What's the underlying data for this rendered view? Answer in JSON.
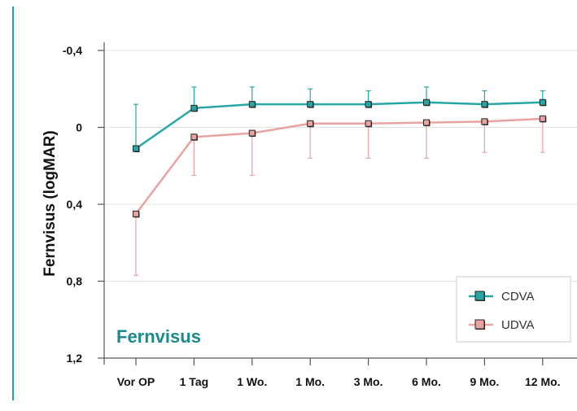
{
  "colors": {
    "cdva": "#27a6a6",
    "udva": "#e9a4a2",
    "title": "#1a8a8c",
    "frame_line": "#25a2a2",
    "axis": "#555555",
    "grid": "#e3e3e3"
  },
  "chart_data": {
    "type": "line",
    "title": "Fernvisus",
    "ylabel": "Fernvisus (logMAR)",
    "xlabel": "",
    "categories": [
      "Vor OP",
      "1 Tag",
      "1 Wo.",
      "1 Mo.",
      "3 Mo.",
      "6 Mo.",
      "9 Mo.",
      "12 Mo."
    ],
    "ylim": [
      -0.45,
      1.2
    ],
    "y_inverted": true,
    "yticks": [
      -0.4,
      0,
      0.4,
      0.8,
      1.2
    ],
    "ytick_labels": [
      "-0,4",
      "0",
      "0,4",
      "0,8",
      "1,2"
    ],
    "grid": true,
    "legend_position": "bottom-right",
    "series": [
      {
        "name": "CDVA",
        "color": "#27a6a6",
        "values": [
          0.11,
          -0.1,
          -0.12,
          -0.12,
          -0.12,
          -0.13,
          -0.12,
          -0.13
        ],
        "error_upper": [
          -0.12,
          -0.21,
          -0.21,
          -0.2,
          -0.19,
          -0.21,
          -0.19,
          -0.19
        ],
        "error_lower": null
      },
      {
        "name": "UDVA",
        "color": "#e9a4a2",
        "values": [
          0.45,
          0.05,
          0.03,
          -0.02,
          -0.02,
          -0.025,
          -0.03,
          -0.045
        ],
        "error_upper": null,
        "error_lower": [
          0.77,
          0.25,
          0.25,
          0.16,
          0.16,
          0.16,
          0.13,
          0.13
        ]
      }
    ]
  }
}
